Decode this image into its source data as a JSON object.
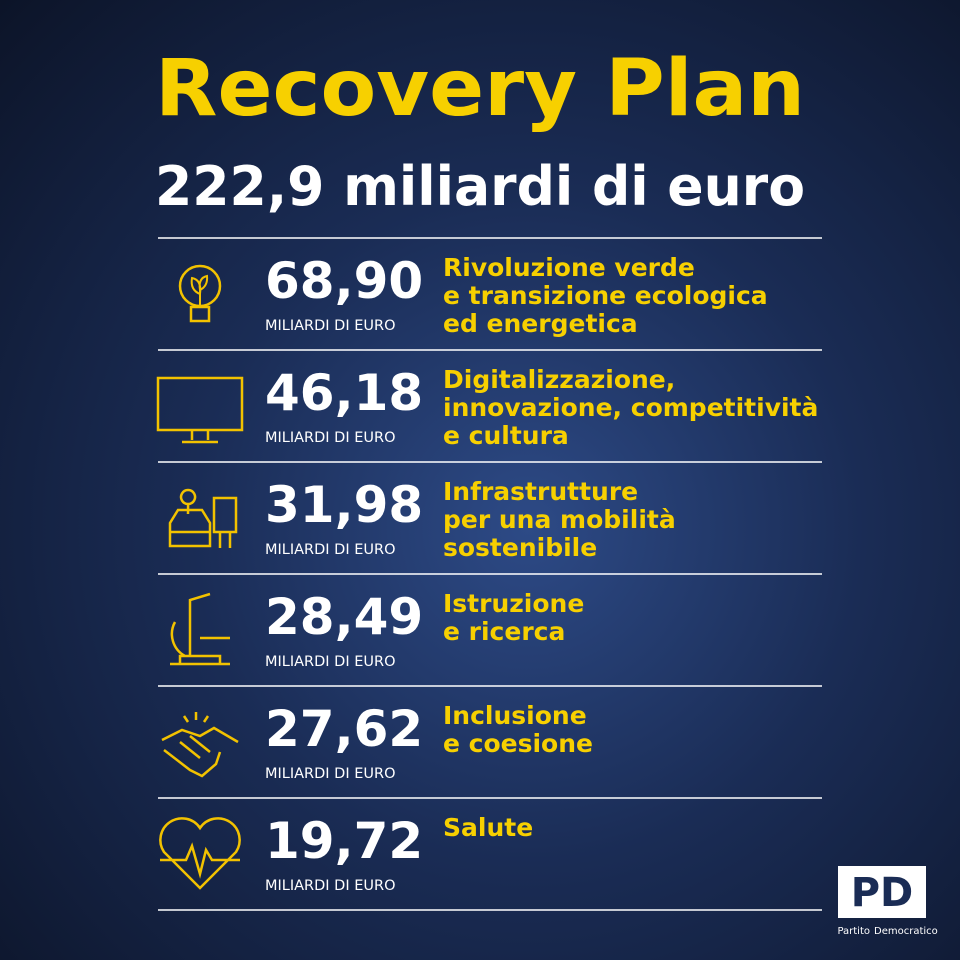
{
  "header": {
    "title": "Recovery Plan",
    "subtitle": "222,9 miliardi di euro"
  },
  "items": [
    {
      "amount": "68,90",
      "unit": "MILIARDI DI EURO",
      "label": [
        "Rivoluzione verde",
        "e transizione ecologica",
        "ed energetica"
      ]
    },
    {
      "amount": "46,18",
      "unit": "MILIARDI DI EURO",
      "label": [
        "Digitalizzazione,",
        "innovazione, competitività",
        "e cultura"
      ]
    },
    {
      "amount": "31,98",
      "unit": "MILIARDI DI EURO",
      "label": [
        "Infrastrutture",
        "per una mobilità",
        "sostenibile"
      ]
    },
    {
      "amount": "28,49",
      "unit": "MILIARDI DI EURO",
      "label": [
        "Istruzione",
        "e ricerca"
      ]
    },
    {
      "amount": "27,62",
      "unit": "MILIARDI DI EURO",
      "label": [
        "Inclusione",
        "e coesione"
      ]
    },
    {
      "amount": "19,72",
      "unit": "MILIARDI DI EURO",
      "label": [
        "Salute"
      ]
    }
  ],
  "logo": {
    "mark": "PD",
    "left": "Partito",
    "right": "Democratico"
  }
}
